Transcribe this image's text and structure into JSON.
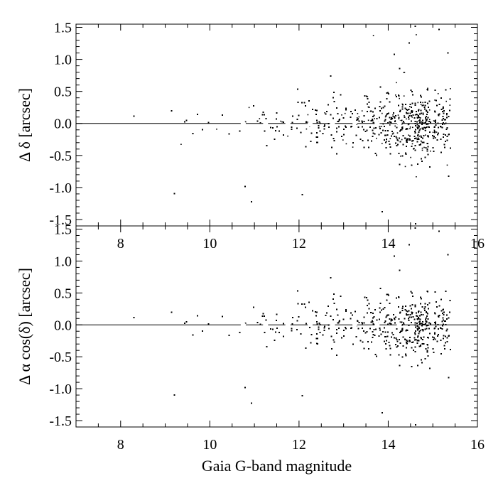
{
  "chart_data": [
    {
      "type": "scatter",
      "panel": "top",
      "ylabel": "Δ δ [arcsec]",
      "xlabel": "",
      "xlim": [
        7,
        16
      ],
      "ylim": [
        -1.6,
        1.55
      ],
      "x_ticks": [
        8,
        10,
        12,
        14,
        16
      ],
      "x_tick_labels": [
        "8",
        "10",
        "12",
        "14",
        "16"
      ],
      "y_ticks": [
        -1.5,
        -1.0,
        -0.5,
        0.0,
        0.5,
        1.0,
        1.5
      ],
      "y_tick_labels": [
        "-1.5",
        "-1.0",
        "-0.5",
        "0.0",
        "0.5",
        "1.0",
        "1.5"
      ],
      "reference_line_y": 0.0,
      "series": [
        {
          "kind": "binned_median",
          "marker_color": "#ffffff",
          "x": [
            10.75,
            11.25,
            11.75,
            12.25,
            12.75,
            13.25,
            13.75,
            14.25
          ],
          "y": [
            0.0,
            -0.01,
            0.0,
            -0.01,
            0.0,
            0.01,
            0.0,
            0.01
          ]
        }
      ],
      "scatter_cloud": {
        "description_points": "dense black dots of individual stars, spread widening with magnitude",
        "mag_range": [
          7.2,
          15.4
        ],
        "core_sigma_by_mag": [
          [
            7,
            0.28
          ],
          [
            10,
            0.12
          ],
          [
            12,
            0.18
          ],
          [
            14,
            0.24
          ],
          [
            15,
            0.28
          ]
        ]
      }
    },
    {
      "type": "scatter",
      "panel": "bottom",
      "ylabel": "Δ α cos(δ) [arcsec]",
      "xlabel": "Gaia G-band magnitude",
      "xlim": [
        7,
        16
      ],
      "ylim": [
        -1.6,
        1.55
      ],
      "x_ticks": [
        8,
        10,
        12,
        14,
        16
      ],
      "x_tick_labels": [
        "8",
        "10",
        "12",
        "14",
        "16"
      ],
      "y_ticks": [
        -1.5,
        -1.0,
        -0.5,
        0.0,
        0.5,
        1.0,
        1.5
      ],
      "y_tick_labels": [
        "-1.5",
        "-1.0",
        "-0.5",
        "0.0",
        "0.5",
        "1.0",
        "1.5"
      ],
      "reference_line_y": 0.0,
      "series": [
        {
          "kind": "binned_median",
          "marker_color": "#ffffff",
          "x": [
            10.75,
            11.25,
            11.75,
            12.25,
            12.75,
            13.25,
            13.75,
            14.25
          ],
          "y": [
            0.0,
            0.0,
            0.0,
            0.01,
            0.0,
            0.0,
            0.0,
            0.0
          ]
        }
      ],
      "scatter_cloud": {
        "mag_range": [
          7.2,
          15.4
        ],
        "core_sigma_by_mag": [
          [
            7,
            0.28
          ],
          [
            10,
            0.12
          ],
          [
            12,
            0.18
          ],
          [
            14,
            0.24
          ],
          [
            15,
            0.28
          ]
        ]
      }
    }
  ]
}
